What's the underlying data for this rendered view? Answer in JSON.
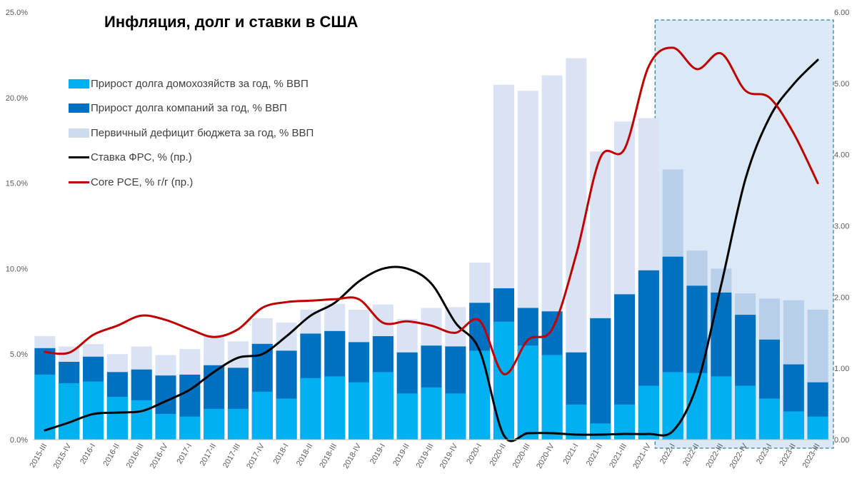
{
  "chart_data": {
    "type": "bar",
    "title": "Инфляция, долг и ставки в США",
    "categories": [
      "2015-III",
      "2015-IV",
      "2016-I",
      "2016-II",
      "2016-III",
      "2016-IV",
      "2017-I",
      "2017-II",
      "2017-III",
      "2017-IV",
      "2018-I",
      "2018-II",
      "2018-III",
      "2018-IV",
      "2019-I",
      "2019-II",
      "2019-III",
      "2019-IV",
      "2020-I",
      "2020-II",
      "2020-III",
      "2020-IV",
      "2021-I",
      "2021-II",
      "2021-III",
      "2021-IV",
      "2022-I",
      "2022-II",
      "2022-III",
      "2022-IV",
      "2023-I",
      "2023-II",
      "2023-III"
    ],
    "stacked": true,
    "series": [
      {
        "name": "Прирост долга домохозяйств за год, % ВВП",
        "kind": "bar",
        "color": "#00b0f0",
        "values": [
          3.8,
          3.3,
          3.4,
          2.5,
          2.3,
          1.5,
          1.35,
          1.8,
          1.8,
          2.8,
          2.4,
          3.6,
          3.7,
          3.35,
          3.95,
          2.7,
          3.05,
          2.7,
          5.2,
          6.9,
          5.5,
          4.95,
          2.05,
          0.95,
          2.05,
          3.15,
          3.95,
          3.9,
          3.7,
          3.15,
          2.4,
          1.65,
          1.35
        ]
      },
      {
        "name": "Прирост долга компаний за год,  % ВВП",
        "kind": "bar",
        "color": "#0070c0",
        "values": [
          5.35,
          4.55,
          4.85,
          3.95,
          4.1,
          3.75,
          3.8,
          4.35,
          4.2,
          5.6,
          5.2,
          6.2,
          6.35,
          5.7,
          6.05,
          5.1,
          5.5,
          5.45,
          8.0,
          8.85,
          7.7,
          7.5,
          5.1,
          7.1,
          8.5,
          9.9,
          10.7,
          9.0,
          8.6,
          7.3,
          5.85,
          4.4,
          3.35
        ]
      },
      {
        "name": "Первичный дефицит бюджета за год,  % ВВП",
        "kind": "bar",
        "color": "#dae3f3",
        "values": [
          6.05,
          5.45,
          5.6,
          5.0,
          5.45,
          4.95,
          5.3,
          6.1,
          5.75,
          7.1,
          6.85,
          7.6,
          7.95,
          7.6,
          7.9,
          7.05,
          7.7,
          7.75,
          10.35,
          20.75,
          20.4,
          21.3,
          22.3,
          16.85,
          18.6,
          18.8,
          15.8,
          11.05,
          10.0,
          8.55,
          8.25,
          8.15,
          7.6
        ]
      },
      {
        "name": "Ставка ФРС, % (пр.)",
        "kind": "line",
        "axis": "right",
        "color": "#000000",
        "values": [
          0.13,
          0.24,
          0.36,
          0.38,
          0.4,
          0.54,
          0.7,
          0.95,
          1.15,
          1.2,
          1.45,
          1.74,
          1.92,
          2.22,
          2.4,
          2.4,
          2.19,
          1.64,
          1.25,
          0.06,
          0.09,
          0.09,
          0.07,
          0.07,
          0.08,
          0.08,
          0.12,
          0.77,
          2.17,
          3.65,
          4.52,
          4.99,
          5.33
        ]
      },
      {
        "name": "Core PCE, % г/г (пр.)",
        "kind": "line",
        "axis": "right",
        "color": "#c00000",
        "values": [
          1.23,
          1.22,
          1.47,
          1.6,
          1.74,
          1.68,
          1.55,
          1.44,
          1.55,
          1.85,
          1.93,
          1.95,
          1.97,
          1.97,
          1.64,
          1.66,
          1.6,
          1.5,
          1.67,
          0.92,
          1.4,
          1.55,
          2.6,
          3.96,
          4.08,
          5.24,
          5.5,
          5.2,
          5.42,
          4.9,
          4.8,
          4.3,
          3.6
        ]
      }
    ],
    "y_left": {
      "min": 0,
      "max": 25,
      "ticks": [
        "0.0%",
        "5.0%",
        "10.0%",
        "15.0%",
        "20.0%",
        "25.0%"
      ]
    },
    "y_right": {
      "min": 0,
      "max": 6,
      "ticks": [
        "0.00",
        "1.00",
        "2.00",
        "3.00",
        "4.00",
        "5.00",
        "6.00"
      ]
    },
    "highlight": {
      "from": "2022-I",
      "to": "2023-III"
    },
    "legend_position": "top-left",
    "grid": false
  }
}
